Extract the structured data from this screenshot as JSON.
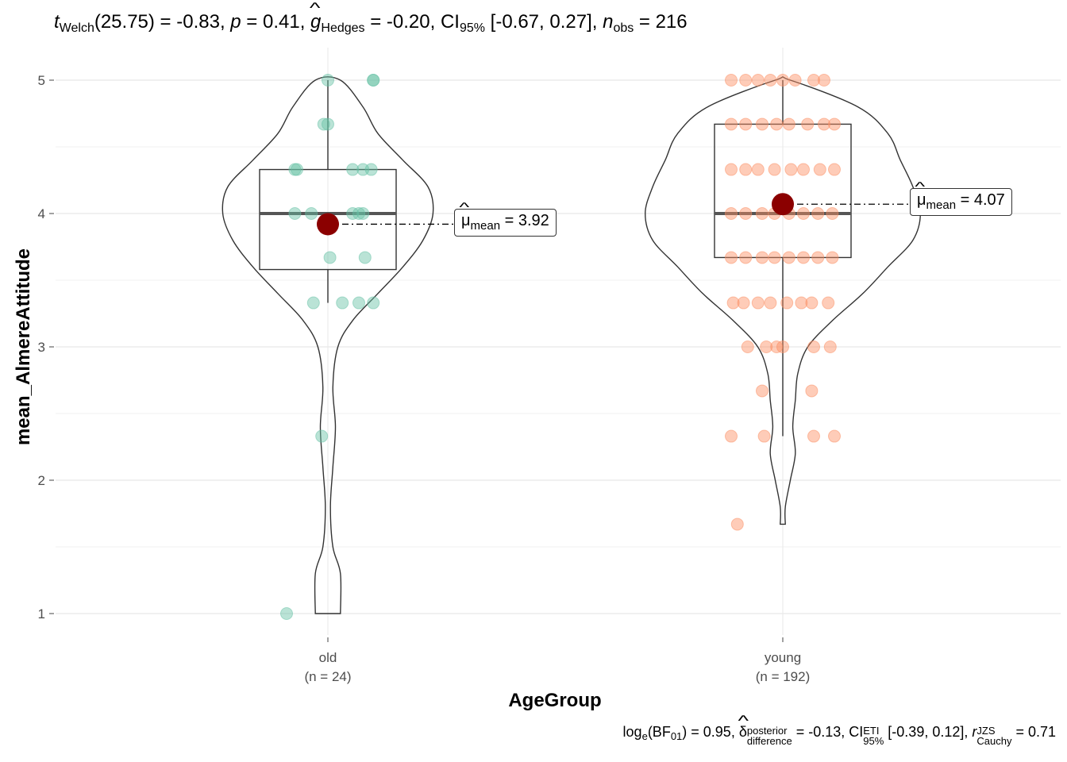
{
  "subtitle": {
    "t_label": "t",
    "t_sub": "Welch",
    "t_df": "(25.75)",
    "t_value": " = -0.83, ",
    "p_label": "p",
    "p_value": " = 0.41, ",
    "g_label": "g",
    "g_sub": "Hedges",
    "g_value": " = -0.20, CI",
    "ci_sub": "95%",
    "ci_value": " [-0.67, 0.27], ",
    "n_label": "n",
    "n_sub": "obs",
    "n_value": " = 216"
  },
  "caption": {
    "log_text": "log",
    "log_sub": "e",
    "bf_text": "(BF",
    "bf_sub": "01",
    "bf_value": ") = 0.95, ",
    "delta_symbol": "δ",
    "delta_sup": "posterior",
    "delta_sub": "difference",
    "delta_value": " = -0.13, CI",
    "ci_sup": "ETI",
    "ci_sub": "95%",
    "ci_value": " [-0.39, 0.12], ",
    "r_label": "r",
    "r_sup": "JZS",
    "r_sub": "Cauchy",
    "r_value": " = 0.71"
  },
  "chart_data": {
    "type": "violin-box-scatter",
    "xlabel": "AgeGroup",
    "ylabel": "mean_AlmereAttitude",
    "ylim": [
      0.8,
      5.2
    ],
    "yticks": [
      1,
      2,
      3,
      4,
      5
    ],
    "grid": true,
    "categories": [
      "old\n(n = 24)",
      "young\n(n = 192)"
    ],
    "groups": [
      {
        "name": "old",
        "n_label": "(n = 24)",
        "color": "#66c2a5",
        "mean": 3.92,
        "mean_label_symbol": "μ",
        "mean_label_sub": "mean",
        "mean_label_value": " = 3.92",
        "box": {
          "q1": 3.58,
          "median": 4.0,
          "q3": 4.33,
          "whisker_low": 3.33,
          "whisker_high": 5.0
        },
        "points": [
          {
            "dx": 0.0,
            "y": 5.0
          },
          {
            "dx": 0.22,
            "y": 5.0
          },
          {
            "dx": 0.22,
            "y": 5.0
          },
          {
            "dx": -0.02,
            "y": 4.67
          },
          {
            "dx": 0.0,
            "y": 4.67
          },
          {
            "dx": -0.16,
            "y": 4.33
          },
          {
            "dx": -0.15,
            "y": 4.33
          },
          {
            "dx": 0.12,
            "y": 4.33
          },
          {
            "dx": 0.17,
            "y": 4.33
          },
          {
            "dx": 0.21,
            "y": 4.33
          },
          {
            "dx": -0.16,
            "y": 4.0
          },
          {
            "dx": -0.08,
            "y": 4.0
          },
          {
            "dx": 0.12,
            "y": 4.0
          },
          {
            "dx": 0.15,
            "y": 4.0
          },
          {
            "dx": 0.17,
            "y": 4.0
          },
          {
            "dx": 0.01,
            "y": 3.67
          },
          {
            "dx": 0.18,
            "y": 3.67
          },
          {
            "dx": -0.07,
            "y": 3.33
          },
          {
            "dx": 0.07,
            "y": 3.33
          },
          {
            "dx": 0.15,
            "y": 3.33
          },
          {
            "dx": 0.22,
            "y": 3.33
          },
          {
            "dx": -0.03,
            "y": 2.33
          },
          {
            "dx": -0.2,
            "y": 1.0
          }
        ],
        "violin": [
          [
            1.0,
            0.05
          ],
          [
            1.3,
            0.05
          ],
          [
            1.5,
            0.02
          ],
          [
            1.8,
            0.01
          ],
          [
            2.1,
            0.02
          ],
          [
            2.4,
            0.03
          ],
          [
            2.7,
            0.02
          ],
          [
            3.0,
            0.04
          ],
          [
            3.2,
            0.1
          ],
          [
            3.4,
            0.2
          ],
          [
            3.6,
            0.3
          ],
          [
            3.8,
            0.38
          ],
          [
            4.0,
            0.42
          ],
          [
            4.2,
            0.4
          ],
          [
            4.4,
            0.3
          ],
          [
            4.6,
            0.2
          ],
          [
            4.8,
            0.14
          ],
          [
            5.0,
            0.05
          ]
        ]
      },
      {
        "name": "young",
        "n_label": "(n = 192)",
        "color": "#fc8d62",
        "mean": 4.07,
        "mean_label_symbol": "μ",
        "mean_label_sub": "mean",
        "mean_label_value": " = 4.07",
        "box": {
          "q1": 3.67,
          "median": 4.0,
          "q3": 4.67,
          "whisker_low": 2.33,
          "whisker_high": 5.0
        },
        "points": [
          {
            "dx": -0.25,
            "y": 5.0
          },
          {
            "dx": -0.18,
            "y": 5.0
          },
          {
            "dx": -0.12,
            "y": 5.0
          },
          {
            "dx": -0.06,
            "y": 5.0
          },
          {
            "dx": 0.0,
            "y": 5.0
          },
          {
            "dx": 0.06,
            "y": 5.0
          },
          {
            "dx": 0.15,
            "y": 5.0
          },
          {
            "dx": 0.2,
            "y": 5.0
          },
          {
            "dx": -0.25,
            "y": 4.67
          },
          {
            "dx": -0.18,
            "y": 4.67
          },
          {
            "dx": -0.1,
            "y": 4.67
          },
          {
            "dx": -0.03,
            "y": 4.67
          },
          {
            "dx": 0.03,
            "y": 4.67
          },
          {
            "dx": 0.12,
            "y": 4.67
          },
          {
            "dx": 0.2,
            "y": 4.67
          },
          {
            "dx": 0.25,
            "y": 4.67
          },
          {
            "dx": -0.25,
            "y": 4.33
          },
          {
            "dx": -0.18,
            "y": 4.33
          },
          {
            "dx": -0.12,
            "y": 4.33
          },
          {
            "dx": -0.04,
            "y": 4.33
          },
          {
            "dx": 0.04,
            "y": 4.33
          },
          {
            "dx": 0.1,
            "y": 4.33
          },
          {
            "dx": 0.18,
            "y": 4.33
          },
          {
            "dx": 0.25,
            "y": 4.33
          },
          {
            "dx": -0.25,
            "y": 4.0
          },
          {
            "dx": -0.18,
            "y": 4.0
          },
          {
            "dx": -0.1,
            "y": 4.0
          },
          {
            "dx": -0.04,
            "y": 4.0
          },
          {
            "dx": 0.03,
            "y": 4.0
          },
          {
            "dx": 0.1,
            "y": 4.0
          },
          {
            "dx": 0.17,
            "y": 4.0
          },
          {
            "dx": 0.24,
            "y": 4.0
          },
          {
            "dx": -0.25,
            "y": 3.67
          },
          {
            "dx": -0.18,
            "y": 3.67
          },
          {
            "dx": -0.1,
            "y": 3.67
          },
          {
            "dx": -0.04,
            "y": 3.67
          },
          {
            "dx": 0.03,
            "y": 3.67
          },
          {
            "dx": 0.1,
            "y": 3.67
          },
          {
            "dx": 0.17,
            "y": 3.67
          },
          {
            "dx": 0.24,
            "y": 3.67
          },
          {
            "dx": -0.24,
            "y": 3.33
          },
          {
            "dx": -0.19,
            "y": 3.33
          },
          {
            "dx": -0.12,
            "y": 3.33
          },
          {
            "dx": -0.06,
            "y": 3.33
          },
          {
            "dx": 0.02,
            "y": 3.33
          },
          {
            "dx": 0.09,
            "y": 3.33
          },
          {
            "dx": 0.14,
            "y": 3.33
          },
          {
            "dx": 0.22,
            "y": 3.33
          },
          {
            "dx": -0.17,
            "y": 3.0
          },
          {
            "dx": -0.08,
            "y": 3.0
          },
          {
            "dx": -0.03,
            "y": 3.0
          },
          {
            "dx": 0.0,
            "y": 3.0
          },
          {
            "dx": 0.15,
            "y": 3.0
          },
          {
            "dx": 0.23,
            "y": 3.0
          },
          {
            "dx": -0.1,
            "y": 2.67
          },
          {
            "dx": 0.14,
            "y": 2.67
          },
          {
            "dx": -0.25,
            "y": 2.33
          },
          {
            "dx": -0.09,
            "y": 2.33
          },
          {
            "dx": 0.15,
            "y": 2.33
          },
          {
            "dx": 0.25,
            "y": 2.33
          },
          {
            "dx": -0.22,
            "y": 1.67
          }
        ],
        "violin": [
          [
            1.67,
            0.01
          ],
          [
            1.8,
            0.01
          ],
          [
            2.0,
            0.03
          ],
          [
            2.2,
            0.05
          ],
          [
            2.4,
            0.04
          ],
          [
            2.6,
            0.05
          ],
          [
            2.8,
            0.06
          ],
          [
            3.0,
            0.1
          ],
          [
            3.2,
            0.2
          ],
          [
            3.4,
            0.32
          ],
          [
            3.6,
            0.42
          ],
          [
            3.8,
            0.52
          ],
          [
            4.0,
            0.55
          ],
          [
            4.2,
            0.52
          ],
          [
            4.4,
            0.47
          ],
          [
            4.6,
            0.42
          ],
          [
            4.8,
            0.3
          ],
          [
            5.0,
            0.03
          ]
        ]
      }
    ]
  }
}
